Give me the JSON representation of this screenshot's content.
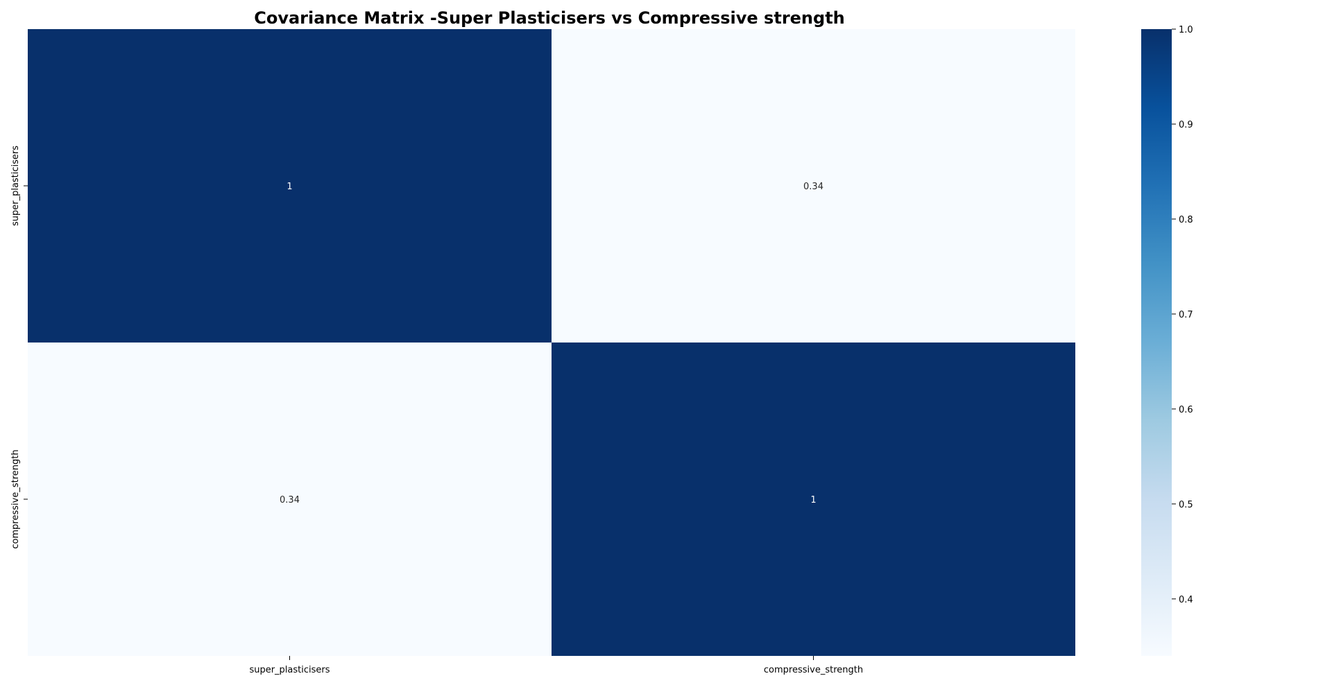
{
  "chart_data": {
    "type": "heatmap",
    "title": "Covariance Matrix -Super Plasticisers vs Compressive strength",
    "x_labels": [
      "super_plasticisers",
      "compressive_strength"
    ],
    "y_labels": [
      "super_plasticisers",
      "compressive_strength"
    ],
    "values": [
      [
        1,
        0.34
      ],
      [
        0.34,
        1
      ]
    ],
    "annotations": [
      [
        "1",
        "0.34"
      ],
      [
        "0.34",
        "1"
      ]
    ],
    "colormap": "Blues",
    "colorbar": {
      "min": 0.34,
      "max": 1.0,
      "ticks": [
        0.4,
        0.5,
        0.6,
        0.7,
        0.8,
        0.9,
        1.0
      ],
      "tick_labels": [
        "0.4",
        "0.5",
        "0.6",
        "0.7",
        "0.8",
        "0.9",
        "1.0"
      ],
      "low_color": "#f7fbff",
      "high_color": "#08306b"
    },
    "grid": false,
    "legend": "colorbar-right"
  }
}
